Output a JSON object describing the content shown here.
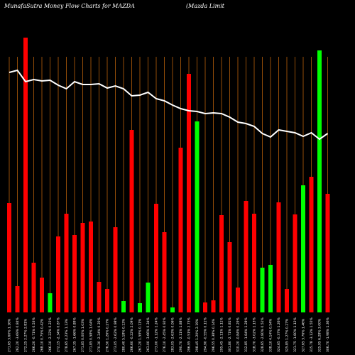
{
  "chart_data": {
    "type": "bar",
    "title": "MunafaSutra  Money Flow  Charts for MAZDA",
    "subtitle": "(Mazda  Limit",
    "categories": [
      "271.65 3.60% 1.16%",
      "262.20 -3.69% 0.84%",
      "272.25 2.27% 2.81%",
      "266.20 -0.71% 0.53%",
      "268.10 0.75% 0.42%",
      "266.10 -2.22% 0.22%",
      "272.15 -2.34% 0.87%",
      "278.65 4.23% 1.13%",
      "267.35 -1.66% 0.89%",
      "271.85 0.00% 1.03%",
      "271.85 0.58% 1.04%",
      "270.30 -2.24% 0.35%",
      "276.50 1.26% 0.27%",
      "273.05 -2.62% 0.98%",
      "280.40 5.18% 0.13%",
      "266.60 -0.22% 2.09%",
      "267.20 1.59% 0.11%",
      "263.00 -3.66% 0.34%",
      "273.00 -1.12% 1.24%",
      "276.10 -2.45% 0.92%",
      "283.05 -2.63% 0.06%",
      "290.70 -2.11% 1.88%",
      "296.95 -0.51% 2.73%",
      "298.45 1.20% 2.19%",
      "294.90 -0.55% 0.11%",
      "296.55 0.38% 0.14%",
      "295.45 -2.11% 1.11%",
      "301.80 -2.71% 0.81%",
      "310.20 -0.84% 0.29%",
      "312.85 -1.84% 1.28%",
      "318.70 -3.02% 1.13%",
      "328.65 -2.80% 0.51%",
      "338.10 4.14% 0.54%",
      "324.65 -0.37% 1.26%",
      "325.85 1.27% 0.27%",
      "321.75 -1.80% 1.12%",
      "327.65 3.76% 1.46%",
      "315.78 -3.12% 1.55%",
      "325.95 6.28% 3.00%",
      "306.70 -1.98% 1.36%"
    ],
    "series": [
      {
        "type": "bar",
        "colors": [
          "#ff0000",
          "#ff0000",
          "#ff0000",
          "#ff0000",
          "#ff0000",
          "#00ff00",
          "#ff0000",
          "#ff0000",
          "#ff0000",
          "#ff0000",
          "#ff0000",
          "#ff0000",
          "#ff0000",
          "#ff0000",
          "#00ff00",
          "#ff0000",
          "#00ff00",
          "#00ff00",
          "#ff0000",
          "#ff0000",
          "#00ff00",
          "#ff0000",
          "#ff0000",
          "#00ff00",
          "#ff0000",
          "#ff0000",
          "#ff0000",
          "#ff0000",
          "#ff0000",
          "#ff0000",
          "#ff0000",
          "#00ff00",
          "#00ff00",
          "#ff0000",
          "#ff0000",
          "#ff0000",
          "#00ff00",
          "#ff0000",
          "#00ff00",
          "#ff0000"
        ],
        "values": [
          154,
          37,
          387,
          70,
          49,
          27,
          107,
          139,
          109,
          126,
          128,
          43,
          33,
          120,
          16,
          257,
          13,
          42,
          153,
          113,
          7,
          232,
          336,
          269,
          14,
          17,
          137,
          99,
          35,
          157,
          139,
          63,
          67,
          155,
          33,
          138,
          179,
          191,
          369,
          167
        ]
      },
      {
        "type": "line",
        "color": "#ffffff",
        "values": [
          338,
          341,
          325,
          328,
          326,
          327,
          320,
          315,
          325,
          321,
          321,
          322,
          316,
          319,
          315,
          305,
          306,
          310,
          301,
          298,
          292,
          287,
          284,
          283,
          280,
          281,
          280,
          275,
          268,
          266,
          262,
          252,
          247,
          257,
          255,
          253,
          248,
          253,
          244,
          252
        ]
      }
    ],
    "ylim": [
      0,
      400
    ],
    "grid": true,
    "grid_color": "#b8600b"
  }
}
